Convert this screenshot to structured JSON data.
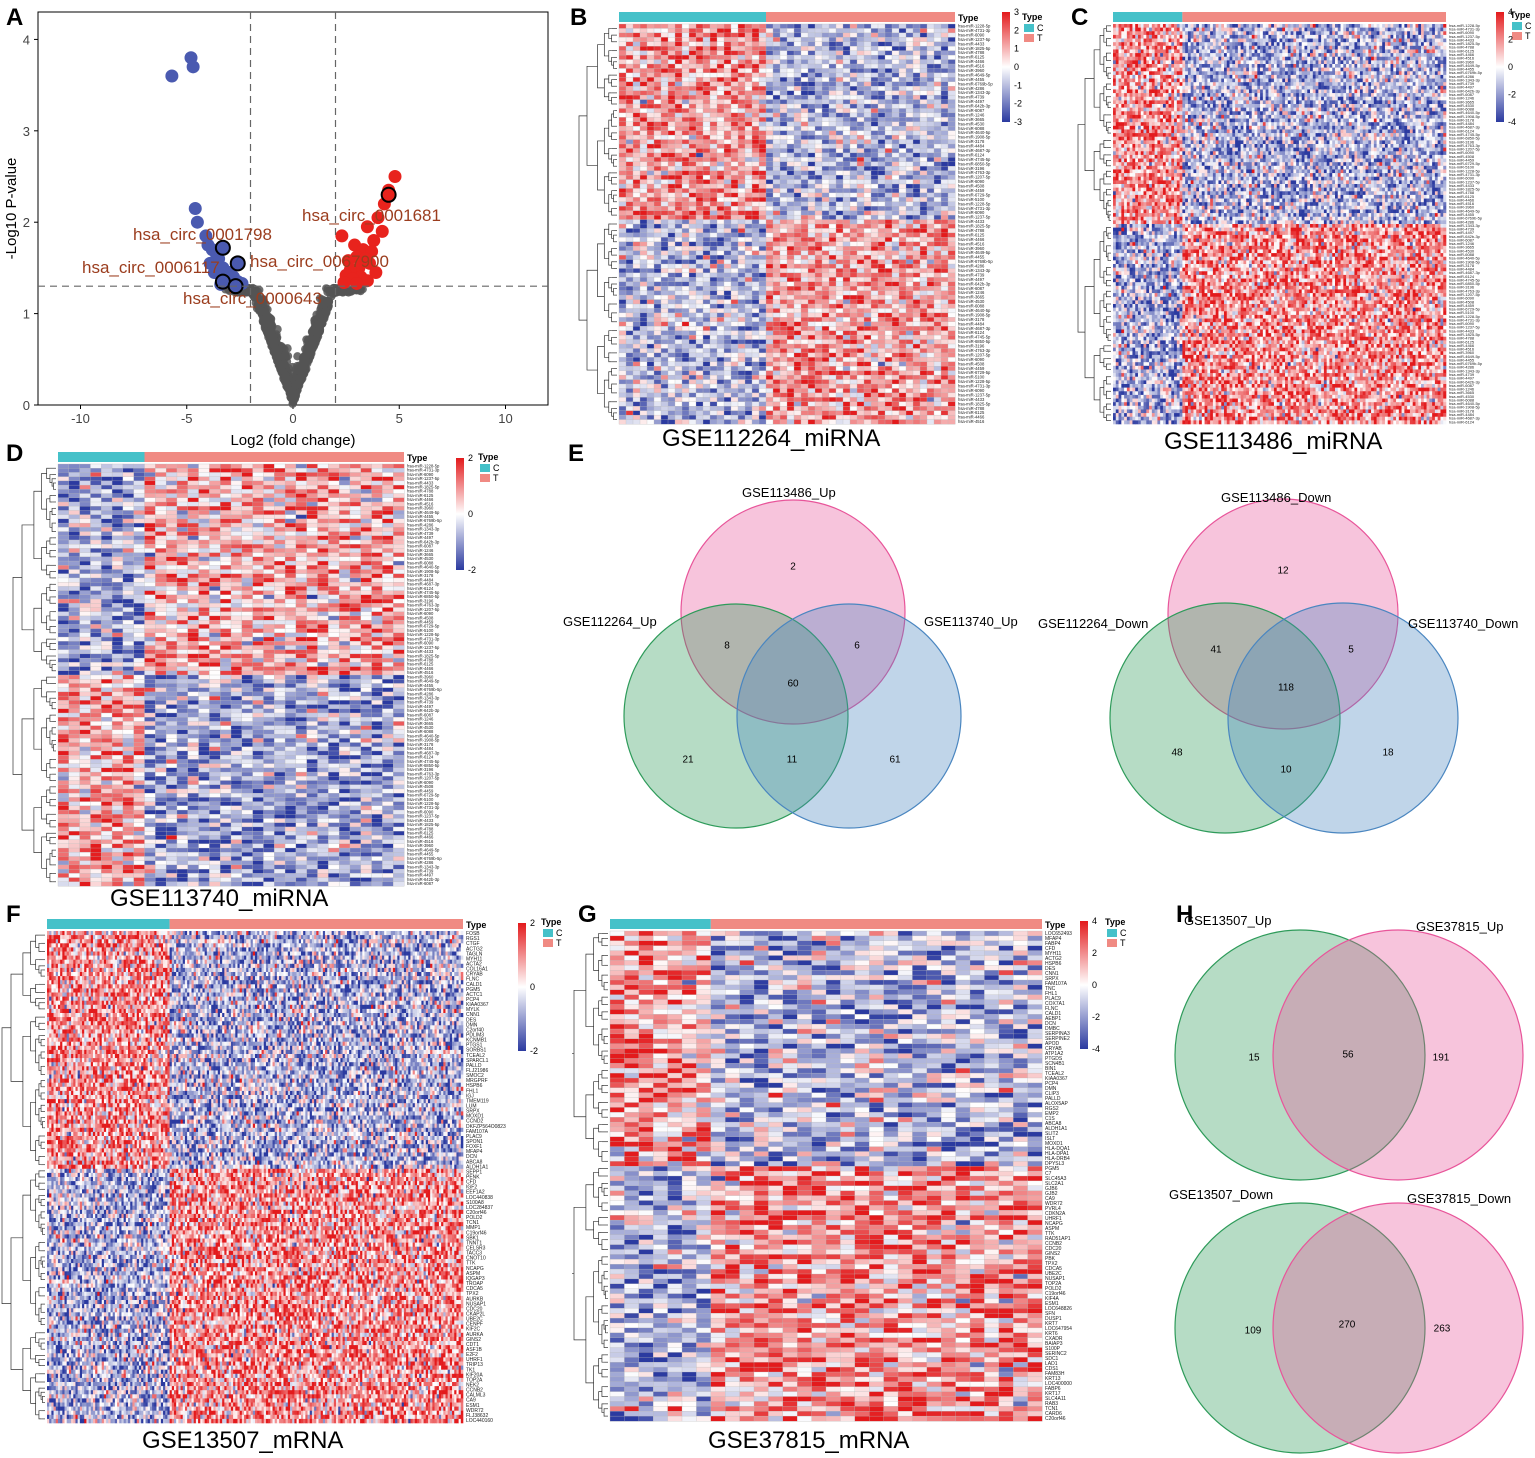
{
  "panels": {
    "A": "A",
    "B": "B",
    "C": "C",
    "D": "D",
    "E": "E",
    "F": "F",
    "G": "G",
    "H": "H"
  },
  "colors": {
    "up": "#e8231d",
    "down": "#4a5ab0",
    "ns": "#555555",
    "annot": "#9b3d1e",
    "heat_high": "#e31a1c",
    "heat_low": "#2b3aa0",
    "type_c": "#45c1c9",
    "type_t": "#f08a83",
    "venn_pink": "#e8559a",
    "venn_green": "#2e9b5a",
    "venn_blue": "#4a86c0"
  },
  "chart_data": [
    {
      "id": "A",
      "type": "scatter",
      "title": "",
      "xlabel": "Log2 (fold change)",
      "ylabel": "-Log10 P-value",
      "xlim": [
        -12,
        12
      ],
      "ylim": [
        0,
        4.3
      ],
      "xticks": [
        -10,
        -5,
        0,
        5,
        10
      ],
      "yticks": [
        0,
        1,
        2,
        3,
        4
      ],
      "thresholds": {
        "x": [
          -2,
          2
        ],
        "y": 1.3
      },
      "down_points": [
        [
          -5.7,
          3.6
        ],
        [
          -4.8,
          3.8
        ],
        [
          -4.7,
          3.7
        ],
        [
          -4.6,
          2.15
        ],
        [
          -4.5,
          2.0
        ],
        [
          -4.1,
          1.85
        ],
        [
          -4.0,
          1.75
        ],
        [
          -3.8,
          1.7
        ],
        [
          -3.6,
          1.65
        ],
        [
          -3.9,
          1.55
        ],
        [
          -3.5,
          1.6
        ],
        [
          -3.3,
          1.5
        ],
        [
          -3.0,
          1.45
        ],
        [
          -3.7,
          1.45
        ],
        [
          -2.8,
          1.4
        ],
        [
          -3.2,
          1.38
        ],
        [
          -2.6,
          1.35
        ],
        [
          -2.4,
          1.33
        ],
        [
          -3.4,
          1.32
        ]
      ],
      "up_points": [
        [
          4.8,
          2.5
        ],
        [
          4.5,
          2.35
        ],
        [
          4.3,
          2.2
        ],
        [
          4.0,
          2.05
        ],
        [
          3.5,
          1.95
        ],
        [
          4.2,
          1.9
        ],
        [
          2.3,
          1.85
        ],
        [
          3.8,
          1.8
        ],
        [
          2.9,
          1.75
        ],
        [
          3.3,
          1.7
        ],
        [
          3.7,
          1.68
        ],
        [
          3.0,
          1.62
        ],
        [
          3.4,
          1.6
        ],
        [
          2.6,
          1.58
        ],
        [
          3.6,
          1.55
        ],
        [
          3.1,
          1.5
        ],
        [
          2.7,
          1.48
        ],
        [
          3.9,
          1.45
        ],
        [
          2.5,
          1.42
        ],
        [
          3.2,
          1.4
        ],
        [
          2.8,
          1.38
        ],
        [
          3.5,
          1.36
        ],
        [
          2.4,
          1.34
        ],
        [
          3.0,
          1.33
        ]
      ],
      "highlighted": [
        {
          "label": "hsa_circ_0001681",
          "x": 4.5,
          "y": 2.3,
          "dir": "up"
        },
        {
          "label": "hsa_circ_0001798",
          "x": -3.3,
          "y": 1.72,
          "dir": "down"
        },
        {
          "label": "hsa_circ_0006117",
          "x": -3.3,
          "y": 1.35,
          "dir": "down"
        },
        {
          "label": "hsa_circ_0067900",
          "x": -2.6,
          "y": 1.55,
          "dir": "down"
        },
        {
          "label": "hsa_circ_0000643",
          "x": -2.7,
          "y": 1.3,
          "dir": "down"
        }
      ],
      "visible_labels": {
        "l1": "hsa_circ_0001681",
        "l2": "hsa_circ_0001798",
        "l3": "hsa_circ_0006117",
        "l4": "hsa_circ_0067900",
        "l5": "hsa_circ_0000643"
      }
    },
    {
      "id": "B",
      "type": "heatmap",
      "title": "GSE112264_miRNA",
      "legend_title": "Type",
      "groups": [
        "C",
        "T"
      ],
      "scale_ticks": [
        3,
        2,
        1,
        0,
        -1,
        -2,
        -3
      ]
    },
    {
      "id": "C",
      "type": "heatmap",
      "title": "GSE113486_miRNA",
      "legend_title": "Type",
      "groups": [
        "C",
        "T"
      ],
      "scale_ticks": [
        4,
        2,
        0,
        -2,
        -4
      ]
    },
    {
      "id": "D",
      "type": "heatmap",
      "title": "GSE113740_miRNA",
      "legend_title": "Type",
      "groups": [
        "C",
        "T"
      ],
      "scale_ticks": [
        2,
        0,
        -2
      ]
    },
    {
      "id": "F",
      "type": "heatmap",
      "title": "GSE13507_mRNA",
      "legend_title": "Type",
      "groups": [
        "C",
        "T"
      ],
      "scale_ticks": [
        2,
        0,
        -2
      ]
    },
    {
      "id": "G",
      "type": "heatmap",
      "title": "GSE37815_mRNA",
      "legend_title": "Type",
      "groups": [
        "C",
        "T"
      ],
      "scale_ticks": [
        4,
        2,
        0,
        -2,
        -4
      ]
    }
  ],
  "venn": {
    "E_up": {
      "sets": [
        "GSE113486_Up",
        "GSE112264_Up",
        "GSE113740_Up"
      ],
      "only_a": "2",
      "only_b": "21",
      "only_c": "61",
      "ab": "8",
      "ac": "6",
      "bc": "11",
      "abc": "60"
    },
    "E_down": {
      "sets": [
        "GSE113486_Down",
        "GSE112264_Down",
        "GSE113740_Down"
      ],
      "only_a": "12",
      "only_b": "48",
      "only_c": "18",
      "ab": "41",
      "ac": "5",
      "bc": "10",
      "abc": "118"
    },
    "H_up": {
      "sets": [
        "GSE13507_Up",
        "GSE37815_Up"
      ],
      "only_a": "15",
      "only_b": "191",
      "ab": "56"
    },
    "H_down": {
      "sets": [
        "GSE13507_Down",
        "GSE37815_Down"
      ],
      "only_a": "109",
      "only_b": "263",
      "ab": "270"
    }
  },
  "gene_labels_F": [
    "FOSB",
    "RGS1",
    "CTGF",
    "ACTG2",
    "TAGLN",
    "MYH11",
    "ACTA2",
    "COL16A1",
    "CRYAB",
    "FLNC",
    "CALD1",
    "PGM5",
    "ACTC1",
    "PCP4",
    "KIAA0367",
    "MYLK",
    "CNN1",
    "DES",
    "DMN",
    "C2orf40",
    "PDLIM3",
    "KCNMB1",
    "PTGS1",
    "SORBS1",
    "TCEAL2",
    "SPARCL1",
    "PALLD",
    "FLJ21986",
    "SMOC2",
    "MRGPRF",
    "HSPB6",
    "FHL1",
    "IGJ",
    "TMEM119",
    "LUM",
    "SRPX",
    "MOXD1",
    "CCND2",
    "DKFZP564O0823",
    "FAM107A",
    "PLAC9",
    "SPON1",
    "FOXF1",
    "MFAP4",
    "DCN",
    "ABCA8",
    "ALDH1A1",
    "SEPP1",
    "PENK",
    "CFD",
    "IGF2",
    "EEF1A2",
    "LOC440838",
    "S100A8",
    "LOC284837",
    "C20orf46",
    "POLD2",
    "TCN1",
    "MMP1",
    "C19orf46",
    "SBK1",
    "TNNT1",
    "CELSR3",
    "TACC3",
    "CNOT10",
    "TTK",
    "NCAPG",
    "ASPM",
    "IQGAP3",
    "TROAP",
    "CDCA5",
    "TPX2",
    "AURKB",
    "NUSAP1",
    "CDC20",
    "CKAP2L",
    "UBE2C",
    "CENPF",
    "KIF2C",
    "AURKA",
    "GINS2",
    "CDT1",
    "ASF1B",
    "E2F2",
    "UHRF1",
    "TRIP13",
    "TK1",
    "KIF20A",
    "TOP2A",
    "NEK2",
    "CCNB2",
    "CALML3",
    "CA9",
    "ESM1",
    "WDR72",
    "FLJ38632",
    "LOC440160"
  ],
  "gene_labels_G": [
    "LOC652493",
    "MFAP4",
    "FABP4",
    "CFD",
    "MYH11",
    "ACTG2",
    "HSPB6",
    "DES",
    "CNN1",
    "SRPX",
    "FAM107A",
    "TNC",
    "FHL1",
    "PLAC9",
    "COX7A1",
    "FLNC",
    "CALD1",
    "AEBP1",
    "DCN",
    "DMBC",
    "SERPINA3",
    "SERPINE2",
    "APOD",
    "CRYAB",
    "ATP1A2",
    "PTGDS",
    "SCN4B1",
    "BIN1",
    "TCEAL2",
    "KIAA0367",
    "PCP4",
    "DMN",
    "CLIP3",
    "PALLD",
    "ALOX5AP",
    "RGS2",
    "EMP2",
    "C1S",
    "ABCA8",
    "ALDH1A1",
    "SLIT2",
    "ISLT",
    "MOXD1",
    "HLA-DQA1",
    "HLA-DPA1",
    "HLA-DRB4",
    "DPYSL3",
    "PGM5",
    "C7",
    "SLC45A3",
    "SLC2A1",
    "GJB6",
    "GJB2",
    "CA9",
    "WDR72",
    "PVRL4",
    "CDKN2A",
    "UHRF1",
    "NCAPG",
    "ASPM",
    "TTK",
    "RAD51AP1",
    "CCNB2",
    "CDC20",
    "GINS2",
    "PBK",
    "TPX2",
    "CDCA5",
    "UBE2C",
    "NUSAP1",
    "TOP2A",
    "POLD2",
    "C19orf46",
    "KIF4A",
    "ESM1",
    "LOC648826",
    "SFN",
    "DUSP1",
    "KRT7",
    "LOC647954",
    "KRT6",
    "CXADR",
    "BAIAP3",
    "S100P",
    "SERINC2",
    "SDC1",
    "LAD1",
    "CDS1",
    "FAM83H",
    "KRT13",
    "LOC400000",
    "FABP6",
    "KRT17",
    "SLC4A11",
    "RAB3",
    "TCN1",
    "CARD6",
    "C20orf46"
  ],
  "mirna_labels": [
    "hsa-miR-1228-5p",
    "hsa-miR-4731-3p",
    "hsa-miR-6090",
    "hsa-miR-1237-5p",
    "hsa-miR-4433",
    "hsa-miR-1825-5p",
    "hsa-miR-4788",
    "hsa-miR-6125",
    "hsa-miR-4466",
    "hsa-miR-4516",
    "hsa-miR-3960",
    "hsa-miR-4649-5p",
    "hsa-miR-4455",
    "hsa-miR-6769b-5p",
    "hsa-miR-4286",
    "hsa-miR-1343-3p",
    "hsa-miR-4739",
    "hsa-miR-4497",
    "hsa-miR-642b-3p",
    "hsa-miR-6087",
    "hsa-miR-1246",
    "hsa-miR-3665",
    "hsa-miR-4530",
    "hsa-miR-6088",
    "hsa-miR-4640-5p",
    "hsa-miR-1908-5p",
    "hsa-miR-3178",
    "hsa-miR-4484",
    "hsa-miR-4687-3p",
    "hsa-miR-6124",
    "hsa-miR-4745-5p",
    "hsa-miR-6850-5p",
    "hsa-miR-3196",
    "hsa-miR-4763-3p",
    "hsa-miR-1207-5p",
    "hsa-miR-6090",
    "hsa-miR-4508",
    "hsa-miR-4459",
    "hsa-miR-6729-5p",
    "hsa-miR-5100"
  ]
}
